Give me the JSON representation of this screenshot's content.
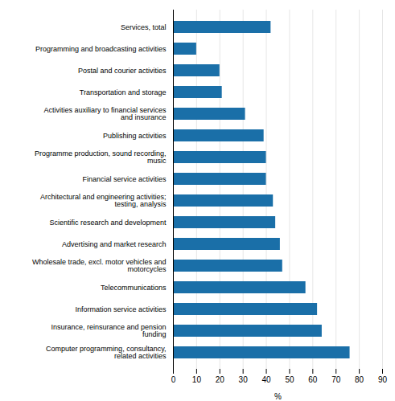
{
  "chart_data": {
    "type": "bar",
    "orientation": "horizontal",
    "categories": [
      "Services, total",
      "Programming and broadcasting activities",
      "Postal and courier activities",
      "Transportation and storage",
      "Activities auxiliary to financial services\nand insurance",
      "Publishing activities",
      "Programme production, sound recording,\nmusic",
      "Financial service activities",
      "Architectural and engineering activities;\ntesting, analysis",
      "Scientific research and development",
      "Advertising and market research",
      "Wholesale trade, excl. motor vehicles and\nmotorcycles",
      "Telecommunications",
      "Information service activities",
      "Insurance, reinsurance and pension\nfunding",
      "Computer programming, consultancy,\nrelated activities"
    ],
    "values": [
      42,
      10,
      20,
      21,
      31,
      39,
      40,
      40,
      43,
      44,
      46,
      47,
      57,
      62,
      64,
      76
    ],
    "color": "#1a6fa8",
    "xlabel": "%",
    "xlim": [
      0,
      90
    ],
    "xticks": [
      0,
      10,
      20,
      30,
      40,
      50,
      60,
      70,
      80,
      90
    ],
    "grid": true
  }
}
